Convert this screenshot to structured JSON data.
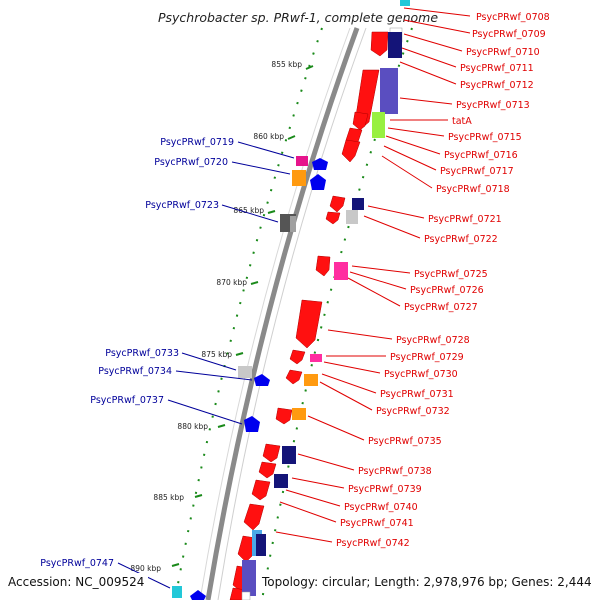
{
  "title": "Psychrobacter sp. PRwf-1, complete genome",
  "footer": {
    "accession": "Accession: NC_009524",
    "summary": "Topology: circular; Length: 2,978,976 bp; Genes: 2,444"
  },
  "ticks": [
    {
      "label": "855 kbp"
    },
    {
      "label": "860 kbp"
    },
    {
      "label": "865 kbp"
    },
    {
      "label": "870 kbp"
    },
    {
      "label": "875 kbp"
    },
    {
      "label": "880 kbp"
    },
    {
      "label": "885 kbp"
    },
    {
      "label": "890 kbp"
    }
  ],
  "right_labels": [
    "PsycPRwf_0708",
    "PsycPRwf_0709",
    "PsycPRwf_0710",
    "PsycPRwf_0711",
    "PsycPRwf_0712",
    "PsycPRwf_0713",
    "tatA",
    "PsycPRwf_0715",
    "PsycPRwf_0716",
    "PsycPRwf_0717",
    "PsycPRwf_0718",
    "PsycPRwf_0721",
    "PsycPRwf_0722",
    "PsycPRwf_0725",
    "PsycPRwf_0726",
    "PsycPRwf_0727",
    "PsycPRwf_0728",
    "PsycPRwf_0729",
    "PsycPRwf_0730",
    "PsycPRwf_0731",
    "PsycPRwf_0732",
    "PsycPRwf_0735",
    "PsycPRwf_0738",
    "PsycPRwf_0739",
    "PsycPRwf_0740",
    "PsycPRwf_0741",
    "PsycPRwf_0742"
  ],
  "left_labels": [
    "PsycPRwf_0719",
    "PsycPRwf_0720",
    "PsycPRwf_0723",
    "PsycPRwf_0733",
    "PsycPRwf_0734",
    "PsycPRwf_0737",
    "PsycPRwf_0747"
  ],
  "colors": {
    "backbone": "#8a8a8a",
    "tick": "#1a8a1a",
    "cds": "#ff0000",
    "label_right": "#e00000",
    "label_left": "#00009a",
    "reverse_strand": "#0000ee"
  }
}
